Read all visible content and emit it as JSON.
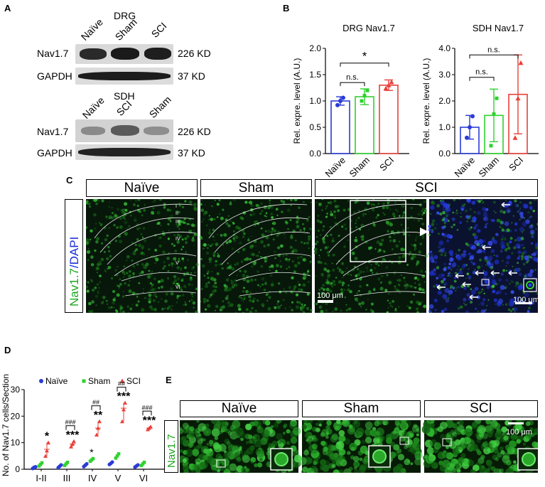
{
  "panel_a": {
    "label": "A",
    "drg": {
      "title": "DRG",
      "lanes": [
        "Naïve",
        "Sham",
        "SCI"
      ],
      "rows": [
        {
          "name": "Nav1.7",
          "size": "226 KD"
        },
        {
          "name": "GAPDH",
          "size": "37 KD"
        }
      ]
    },
    "sdh": {
      "title": "SDH",
      "lanes": [
        "Naïve",
        "SCI",
        "Sham"
      ],
      "rows": [
        {
          "name": "Nav1.7",
          "size": "226 KD"
        },
        {
          "name": "GAPDH",
          "size": "37 KD"
        }
      ]
    }
  },
  "panel_b": {
    "label": "B"
  },
  "panel_c": {
    "label": "C",
    "headers": [
      "Naïve",
      "Sham",
      "SCI"
    ],
    "side_label_green": "Nav1.7",
    "side_label_blue": "/DAPI",
    "laminae": [
      "I",
      "II",
      "III",
      "IV",
      "V",
      "VI"
    ],
    "scalebar_main": "100 μm",
    "scalebar_zoom": "100 μm"
  },
  "panel_d": {
    "label": "D"
  },
  "panel_e": {
    "label": "E",
    "headers": [
      "Naïve",
      "Sham",
      "SCI"
    ],
    "side_label": "Nav1.7",
    "scalebar": "100 μm"
  },
  "colors": {
    "naive": "#2b3bd6",
    "sham": "#2fd12f",
    "sci": "#e8413a",
    "fluor_green": "#1fa51f",
    "dapi_blue": "#1c2fd8"
  },
  "chart_data": [
    {
      "type": "bar",
      "title": "DRG Nav1.7",
      "ylabel": "Rel. expre. level (A.U.)",
      "categories": [
        "Naïve",
        "Sham",
        "SCI"
      ],
      "values": [
        1.0,
        1.08,
        1.3
      ],
      "errors": [
        0.08,
        0.15,
        0.1
      ],
      "points": [
        [
          0.92,
          1.0,
          1.06
        ],
        [
          1.0,
          1.1,
          1.2
        ],
        [
          1.24,
          1.3,
          1.36
        ]
      ],
      "ylim": [
        0,
        2.0
      ],
      "yticks": [
        "0.0",
        "0.5",
        "1.0",
        "1.5",
        "2.0"
      ],
      "annotations": [
        {
          "pair": [
            "Naïve",
            "Sham"
          ],
          "text": "n.s."
        },
        {
          "pair": [
            "Naïve",
            "SCI"
          ],
          "text": "*"
        }
      ]
    },
    {
      "type": "bar",
      "title": "SDH Nav1.7",
      "ylabel": "Rel. expre. level (A.U.)",
      "categories": [
        "Naïve",
        "Sham",
        "SCI"
      ],
      "values": [
        1.0,
        1.45,
        2.25
      ],
      "errors": [
        0.45,
        1.0,
        1.5
      ],
      "points": [
        [
          0.6,
          1.0,
          1.42
        ],
        [
          0.3,
          1.5,
          2.1
        ],
        [
          0.6,
          2.1,
          3.45
        ]
      ],
      "ylim": [
        0,
        4.0
      ],
      "yticks": [
        "0.0",
        "1.0",
        "2.0",
        "3.0",
        "4.0"
      ],
      "annotations": [
        {
          "pair": [
            "Naïve",
            "Sham"
          ],
          "text": "n.s."
        },
        {
          "pair": [
            "Naïve",
            "SCI"
          ],
          "text": "n.s."
        }
      ]
    },
    {
      "type": "scatter",
      "ylabel": "No. of Nav1.7 cells/Section",
      "categories": [
        "I-II",
        "III",
        "IV",
        "V",
        "VI"
      ],
      "series": [
        {
          "name": "Naïve",
          "values": [
            0.6,
            1.1,
            1.5,
            2.2,
            1.2
          ],
          "points": [
            [
              0.3,
              0.7,
              0.9
            ],
            [
              0.6,
              1.1,
              1.6
            ],
            [
              1.0,
              1.5,
              2.0
            ],
            [
              1.8,
              2.2,
              2.7
            ],
            [
              0.8,
              1.2,
              1.6
            ]
          ]
        },
        {
          "name": "Sham",
          "values": [
            1.8,
            2.0,
            3.5,
            5.0,
            2.0
          ],
          "points": [
            [
              1.2,
              1.8,
              2.4
            ],
            [
              1.4,
              2.0,
              2.6
            ],
            [
              3.0,
              3.5,
              4.0
            ],
            [
              4.2,
              5.0,
              5.8
            ],
            [
              1.4,
              2.0,
              2.6
            ]
          ]
        },
        {
          "name": "SCI",
          "values": [
            7.5,
            9.5,
            15.5,
            23.0,
            15.5
          ],
          "points": [
            [
              5.0,
              7.0,
              10.0
            ],
            [
              8.5,
              9.5,
              10.5
            ],
            [
              13.0,
              15.5,
              18.0
            ],
            [
              18.0,
              22.5,
              25.0
            ],
            [
              15.0,
              15.5,
              16.0
            ]
          ]
        }
      ],
      "ylim": [
        0,
        30
      ],
      "yticks": [
        "0",
        "10",
        "20",
        "30"
      ],
      "annotations": [
        {
          "category": "I-II",
          "star": "*",
          "hash": ""
        },
        {
          "category": "III",
          "star": "***",
          "hash": "###"
        },
        {
          "category": "IV",
          "star": "**",
          "hash": "##",
          "extra_star": "*"
        },
        {
          "category": "V",
          "star": "***",
          "hash": "##"
        },
        {
          "category": "VI",
          "star": "***",
          "hash": "###"
        }
      ]
    }
  ]
}
